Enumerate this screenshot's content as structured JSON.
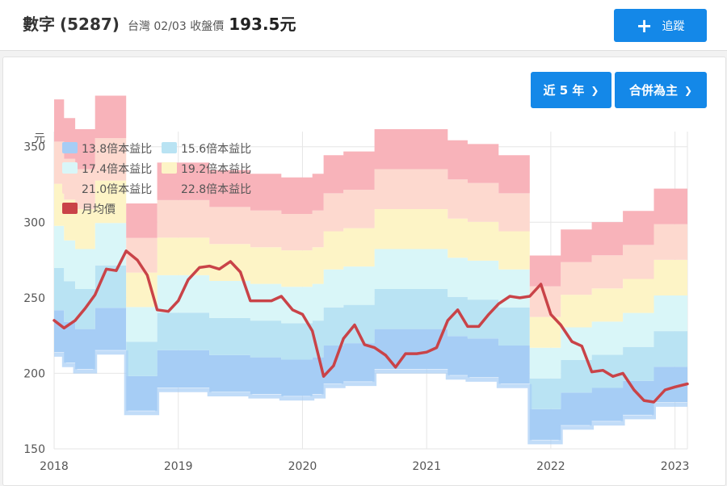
{
  "header": {
    "name": "數字",
    "code": "(5287)",
    "market_date_label": "台灣 02/03 收盤價",
    "price": "193.5元",
    "track_button": "追蹤"
  },
  "controls": {
    "period_button": "近 5 年",
    "mode_button": "合併為主"
  },
  "colors": {
    "accent": "#1488e8",
    "band_1": "#a6cdf5",
    "band_2": "#b9e3f3",
    "band_3": "#d9f6f8",
    "band_4": "#fdf4c6",
    "band_5": "#fdd9cf",
    "band_6": "#f8b3ba",
    "price_line": "#c94348"
  },
  "chart_data": {
    "type": "area",
    "title": "",
    "xlabel": "",
    "ylabel": "元",
    "ylim": [
      150,
      360
    ],
    "xlim": [
      2018.0,
      2023.1
    ],
    "yticks": [
      150,
      200,
      250,
      300,
      350
    ],
    "xticks": [
      2018,
      2019,
      2020,
      2021,
      2022,
      2023
    ],
    "xtick_labels": [
      "2018",
      "2019",
      "2020",
      "2021",
      "2022",
      "2023"
    ],
    "grid": true,
    "legend_position": "top-left",
    "eps_steps": [
      {
        "from": 2018.0,
        "to": 2018.08,
        "eps": 15.5
      },
      {
        "from": 2018.08,
        "to": 2018.17,
        "eps": 15.0
      },
      {
        "from": 2018.17,
        "to": 2018.33,
        "eps": 14.7
      },
      {
        "from": 2018.33,
        "to": 2018.58,
        "eps": 15.6
      },
      {
        "from": 2018.58,
        "to": 2018.83,
        "eps": 12.7
      },
      {
        "from": 2018.83,
        "to": 2019.25,
        "eps": 13.8
      },
      {
        "from": 2019.25,
        "to": 2019.58,
        "eps": 13.6
      },
      {
        "from": 2019.58,
        "to": 2019.83,
        "eps": 13.5
      },
      {
        "from": 2019.83,
        "to": 2020.08,
        "eps": 13.4
      },
      {
        "from": 2020.08,
        "to": 2020.17,
        "eps": 13.5
      },
      {
        "from": 2020.17,
        "to": 2020.33,
        "eps": 14.0
      },
      {
        "from": 2020.33,
        "to": 2020.58,
        "eps": 14.1
      },
      {
        "from": 2020.58,
        "to": 2020.83,
        "eps": 14.7
      },
      {
        "from": 2020.83,
        "to": 2021.17,
        "eps": 14.7
      },
      {
        "from": 2021.17,
        "to": 2021.33,
        "eps": 14.4
      },
      {
        "from": 2021.33,
        "to": 2021.58,
        "eps": 14.3
      },
      {
        "from": 2021.58,
        "to": 2021.83,
        "eps": 14.0
      },
      {
        "from": 2021.83,
        "to": 2022.08,
        "eps": 11.3
      },
      {
        "from": 2022.08,
        "to": 2022.33,
        "eps": 12.0
      },
      {
        "from": 2022.33,
        "to": 2022.58,
        "eps": 12.2
      },
      {
        "from": 2022.58,
        "to": 2022.83,
        "eps": 12.5
      },
      {
        "from": 2022.83,
        "to": 2023.1,
        "eps": 13.1
      }
    ],
    "series": [
      {
        "name": "13.8倍本益比",
        "multiple": 13.8
      },
      {
        "name": "15.6倍本益比",
        "multiple": 15.6
      },
      {
        "name": "17.4倍本益比",
        "multiple": 17.4
      },
      {
        "name": "19.2倍本益比",
        "multiple": 19.2
      },
      {
        "name": "21.0倍本益比",
        "multiple": 21.0
      },
      {
        "name": "22.8倍本益比",
        "multiple": 22.8
      },
      {
        "name": "月均價",
        "x": [
          2018.0,
          2018.08,
          2018.17,
          2018.25,
          2018.33,
          2018.42,
          2018.5,
          2018.58,
          2018.67,
          2018.75,
          2018.83,
          2018.92,
          2019.0,
          2019.08,
          2019.17,
          2019.25,
          2019.33,
          2019.42,
          2019.5,
          2019.58,
          2019.67,
          2019.75,
          2019.83,
          2019.92,
          2020.0,
          2020.08,
          2020.17,
          2020.25,
          2020.33,
          2020.42,
          2020.5,
          2020.58,
          2020.67,
          2020.75,
          2020.83,
          2020.92,
          2021.0,
          2021.08,
          2021.17,
          2021.25,
          2021.33,
          2021.42,
          2021.5,
          2021.58,
          2021.67,
          2021.75,
          2021.83,
          2021.92,
          2022.0,
          2022.08,
          2022.17,
          2022.25,
          2022.33,
          2022.42,
          2022.5,
          2022.58,
          2022.67,
          2022.75,
          2022.83,
          2022.92,
          2023.0,
          2023.1
        ],
        "values": [
          235,
          230,
          235,
          243,
          252,
          269,
          268,
          281,
          275,
          265,
          242,
          241,
          248,
          262,
          270,
          271,
          269,
          274,
          267,
          248,
          248,
          248,
          251,
          242,
          239,
          228,
          198,
          205,
          223,
          232,
          219,
          217,
          212,
          204,
          213,
          213,
          214,
          217,
          235,
          242,
          231,
          231,
          239,
          246,
          251,
          250,
          251,
          259,
          239,
          232,
          221,
          218,
          201,
          202,
          198,
          200,
          189,
          182,
          181,
          189,
          191,
          193
        ]
      }
    ]
  }
}
